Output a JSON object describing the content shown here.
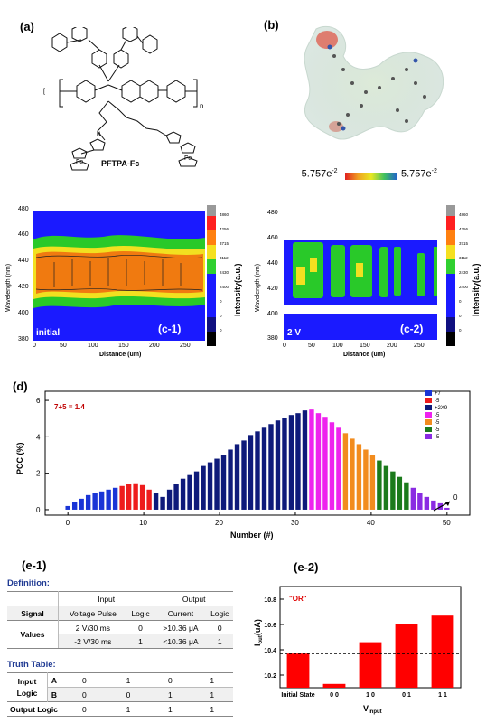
{
  "panels": {
    "a": "(a)",
    "b": "(b)",
    "d": "(d)",
    "e1": "(e-1)",
    "e2": "(e-2)"
  },
  "panel_a": {
    "polymer_name": "PFTPA-Fc",
    "n_label": "n",
    "fe_label": "Fe",
    "n_atom": "N"
  },
  "panel_b": {
    "scale_min": "-5.757e",
    "scale_min_exp": "-2",
    "scale_max": "5.757e",
    "scale_max_exp": "-2"
  },
  "panel_c": {
    "ylabel": "Wavelength (nm)",
    "xlabel": "Distance (um)",
    "colorbar_label": "Intensity(a.u.)",
    "yticks": [
      "480",
      "460",
      "440",
      "420",
      "400",
      "380"
    ],
    "xticks": [
      "0",
      "50",
      "100",
      "150",
      "200",
      "250"
    ],
    "colorbar_ticks": [
      "4860",
      "4256",
      "3715",
      "3112",
      "2430",
      "2400",
      "0",
      "0",
      "0"
    ],
    "c1_label": "(c-1)",
    "c1_state": "initial",
    "c2_label": "(c-2)",
    "c2_state": "2 V"
  },
  "chart_data": {
    "type": "bar",
    "title": "",
    "xlabel": "Number (#)",
    "ylabel": "PCC (%)",
    "xlim": [
      -3,
      53
    ],
    "ylim": [
      -0.3,
      6.5
    ],
    "yticks": [
      0,
      2,
      4,
      6
    ],
    "xticks": [
      0,
      10,
      20,
      30,
      40,
      50
    ],
    "annotation": "7+5 = 1.4",
    "end_annotation": "0",
    "legend_position": "top-right",
    "legend": [
      {
        "label": "+7",
        "color": "#1a35d6"
      },
      {
        "label": "-5",
        "color": "#ee1c1c"
      },
      {
        "label": "+2X9",
        "color": "#0e1a7a"
      },
      {
        "label": "-5",
        "color": "#ee22ee"
      },
      {
        "label": "-5",
        "color": "#f28c1e"
      },
      {
        "label": "-5",
        "color": "#1b7a1b"
      },
      {
        "label": "-5",
        "color": "#8a2be2"
      }
    ],
    "values": [
      0.2,
      0.4,
      0.6,
      0.8,
      0.9,
      1.0,
      1.1,
      1.2,
      1.3,
      1.4,
      1.45,
      1.35,
      1.1,
      0.9,
      0.7,
      1.1,
      1.4,
      1.7,
      1.9,
      2.1,
      2.4,
      2.6,
      2.8,
      3.0,
      3.3,
      3.6,
      3.8,
      4.1,
      4.3,
      4.5,
      4.7,
      4.9,
      5.05,
      5.2,
      5.3,
      5.45,
      5.5,
      5.3,
      5.1,
      4.8,
      4.5,
      4.2,
      3.9,
      3.6,
      3.3,
      3.0,
      2.7,
      2.4,
      2.1,
      1.8,
      1.5,
      1.2,
      0.9,
      0.7,
      0.5,
      0.35,
      0.1
    ],
    "colors": [
      "#1a35d6",
      "#1a35d6",
      "#1a35d6",
      "#1a35d6",
      "#1a35d6",
      "#1a35d6",
      "#1a35d6",
      "#1a35d6",
      "#ee1c1c",
      "#ee1c1c",
      "#ee1c1c",
      "#ee1c1c",
      "#ee1c1c",
      "#0e1a7a",
      "#0e1a7a",
      "#0e1a7a",
      "#0e1a7a",
      "#0e1a7a",
      "#0e1a7a",
      "#0e1a7a",
      "#0e1a7a",
      "#0e1a7a",
      "#0e1a7a",
      "#0e1a7a",
      "#0e1a7a",
      "#0e1a7a",
      "#0e1a7a",
      "#0e1a7a",
      "#0e1a7a",
      "#0e1a7a",
      "#0e1a7a",
      "#0e1a7a",
      "#0e1a7a",
      "#0e1a7a",
      "#0e1a7a",
      "#0e1a7a",
      "#ee22ee",
      "#ee22ee",
      "#ee22ee",
      "#ee22ee",
      "#ee22ee",
      "#f28c1e",
      "#f28c1e",
      "#f28c1e",
      "#f28c1e",
      "#f28c1e",
      "#1b7a1b",
      "#1b7a1b",
      "#1b7a1b",
      "#1b7a1b",
      "#1b7a1b",
      "#8a2be2",
      "#8a2be2",
      "#8a2be2",
      "#8a2be2",
      "#8a2be2",
      "#8a2be2"
    ]
  },
  "bar_chart_e2": {
    "type": "bar",
    "annotation": "\"OR\"",
    "ylabel_main": "I",
    "ylabel_sub": "out",
    "ylabel_unit": "(uA)",
    "xlabel_main": "V",
    "xlabel_sub": "input",
    "categories": [
      "Initial State",
      "0 0",
      "1 0",
      "0 1",
      "1 1"
    ],
    "values": [
      10.37,
      10.13,
      10.46,
      10.6,
      10.67
    ],
    "yticks": [
      10.2,
      10.4,
      10.6,
      10.8
    ],
    "ylim": [
      10.1,
      10.9
    ],
    "threshold": 10.37,
    "bar_color": "#ff0000"
  },
  "table_e1": {
    "definition_title": "Definition:",
    "truth_title": "Truth Table:",
    "def_headers": [
      "Input",
      "Output"
    ],
    "def_subheaders": [
      "Signal",
      "Voltage Pulse",
      "Logic",
      "Current",
      "Logic"
    ],
    "values_label": "Values",
    "def_rows": [
      [
        "2 V/30 ms",
        "0",
        ">10.36 μA",
        "0"
      ],
      [
        "-2 V/30 ms",
        "1",
        "<10.36 μA",
        "1"
      ]
    ],
    "truth_input_label": "Input",
    "truth_logic_label": "Logic",
    "truth_a": "A",
    "truth_b": "B",
    "truth_a_vals": [
      "0",
      "1",
      "0",
      "1"
    ],
    "truth_b_vals": [
      "0",
      "0",
      "1",
      "1"
    ],
    "truth_output_label": "Output Logic",
    "truth_out_vals": [
      "0",
      "1",
      "1",
      "1"
    ]
  }
}
